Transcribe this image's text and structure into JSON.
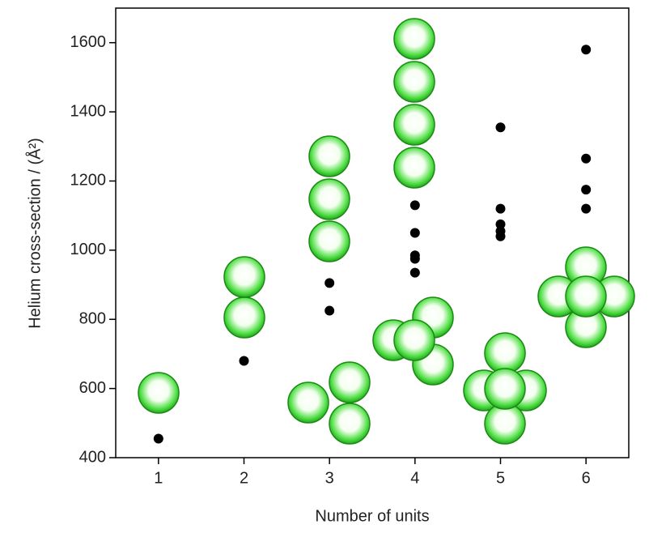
{
  "chart_data": {
    "type": "scatter",
    "x_label": "Number of units",
    "y_label": "Helium cross-section / (Å²)",
    "x": [
      1,
      2,
      3,
      3,
      4,
      4,
      4,
      4,
      4,
      5,
      5,
      5,
      5,
      5,
      6,
      6,
      6,
      6
    ],
    "values": [
      455,
      680,
      905,
      825,
      1130,
      1050,
      985,
      975,
      935,
      1355,
      1120,
      1075,
      1055,
      1040,
      1580,
      1265,
      1175,
      1120
    ],
    "color": "#000000",
    "xlim": [
      0.5,
      6.5
    ],
    "xticks": [
      1,
      2,
      3,
      4,
      5,
      6
    ],
    "ylim": [
      400,
      1700
    ],
    "yticks": [
      400,
      600,
      800,
      1000,
      1200,
      1400,
      1600
    ]
  }
}
